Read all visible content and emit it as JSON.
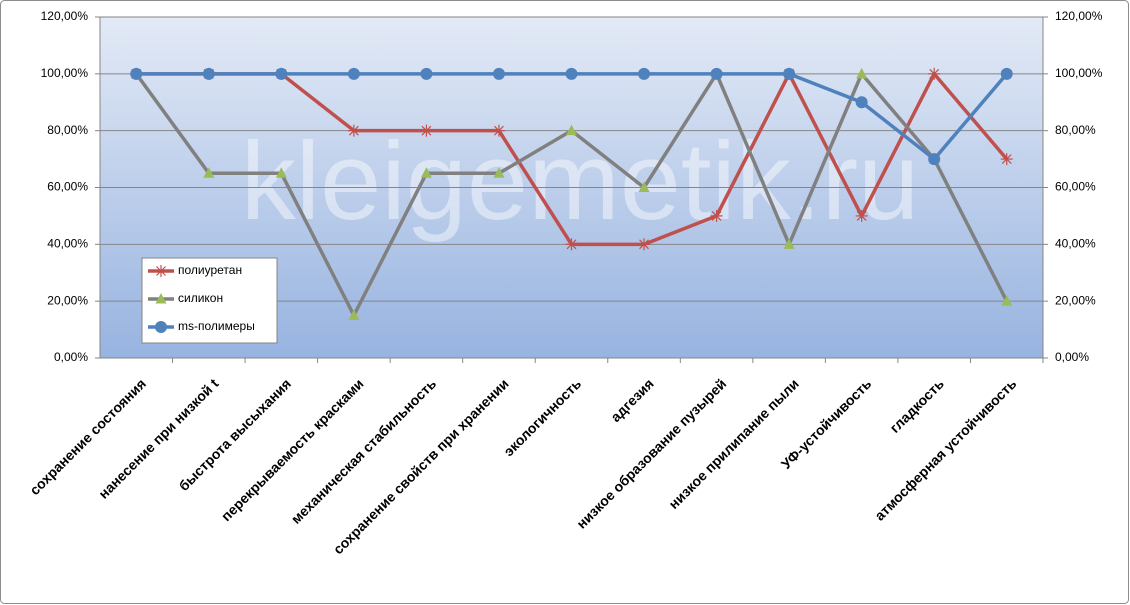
{
  "chart_data": {
    "type": "line",
    "watermark": "kleigemetik.ru",
    "categories": [
      "сохранение состояния",
      "нанесение при низкой t",
      "быстрота высыхания",
      "перекрываемость красками",
      "механическая стабильность",
      "сохранение свойств при хранении",
      "экологичность",
      "адгезия",
      "низкое образование пузырей",
      "низкое прилипание пыли",
      "УФ-устойчивость",
      "гладкость",
      "атмосферная устойчивость"
    ],
    "series": [
      {
        "name": "полиуретан",
        "color": "#c0504d",
        "marker": "star",
        "values": [
          100,
          100,
          100,
          80,
          80,
          80,
          40,
          40,
          50,
          100,
          50,
          100,
          70
        ]
      },
      {
        "name": "силикон",
        "color": "#808080",
        "marker_color": "#9bbb59",
        "marker": "triangle",
        "values": [
          100,
          65,
          65,
          15,
          65,
          65,
          80,
          60,
          100,
          40,
          100,
          70,
          20
        ]
      },
      {
        "name": "ms-полимеры",
        "color": "#4f81bd",
        "marker": "circle",
        "values": [
          100,
          100,
          100,
          100,
          100,
          100,
          100,
          100,
          100,
          100,
          90,
          70,
          100
        ]
      }
    ],
    "ylim": [
      0,
      120
    ],
    "yticks": [
      {
        "value": 0,
        "label": "0,00%"
      },
      {
        "value": 20,
        "label": "20,00%"
      },
      {
        "value": 40,
        "label": "40,00%"
      },
      {
        "value": 60,
        "label": "60,00%"
      },
      {
        "value": 80,
        "label": "80,00%"
      },
      {
        "value": 100,
        "label": "100,00%"
      },
      {
        "value": 120,
        "label": "120,00%"
      }
    ],
    "y2lim": [
      0,
      120
    ],
    "y2ticks": [
      {
        "value": 0,
        "label": "0,00%"
      },
      {
        "value": 20,
        "label": "20,00%"
      },
      {
        "value": 40,
        "label": "40,00%"
      },
      {
        "value": 60,
        "label": "60,00%"
      },
      {
        "value": 80,
        "label": "80,00%"
      },
      {
        "value": 100,
        "label": "100,00%"
      },
      {
        "value": 120,
        "label": "120,00%"
      }
    ],
    "grid": true
  }
}
